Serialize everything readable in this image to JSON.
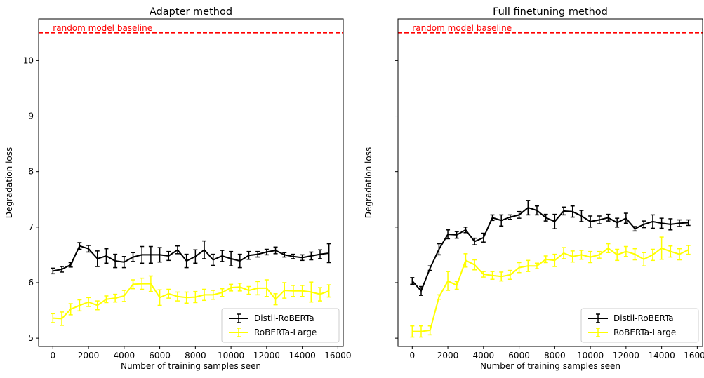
{
  "chart_data": [
    {
      "type": "line",
      "title": "Adapter method",
      "xlabel": "Number of training samples seen",
      "ylabel": "Degradation loss",
      "xlim": [
        -800,
        16300
      ],
      "ylim": [
        4.85,
        10.75
      ],
      "xticks": [
        0,
        2000,
        4000,
        6000,
        8000,
        10000,
        12000,
        14000,
        16000
      ],
      "yticks": [
        5,
        6,
        7,
        8,
        9,
        10
      ],
      "show_ytick_labels": true,
      "grid": false,
      "legend_position": "lower right",
      "baseline": {
        "label": "random model baseline",
        "y": 10.5,
        "color": "#ff0000"
      },
      "x": [
        0,
        500,
        1000,
        1500,
        2000,
        2500,
        3000,
        3500,
        4000,
        4500,
        5000,
        5500,
        6000,
        6500,
        7000,
        7500,
        8000,
        8500,
        9000,
        9500,
        10000,
        10500,
        11000,
        11500,
        12000,
        12500,
        13000,
        13500,
        14000,
        14500,
        15000,
        15500
      ],
      "series": [
        {
          "name": "Distil-RoBERTa",
          "color": "#000000",
          "values": [
            6.21,
            6.24,
            6.32,
            6.66,
            6.61,
            6.43,
            6.48,
            6.39,
            6.37,
            6.46,
            6.5,
            6.5,
            6.5,
            6.48,
            6.59,
            6.39,
            6.47,
            6.59,
            6.41,
            6.48,
            6.43,
            6.39,
            6.49,
            6.51,
            6.55,
            6.58,
            6.5,
            6.47,
            6.45,
            6.48,
            6.51,
            6.53
          ],
          "errors": [
            0.05,
            0.05,
            0.04,
            0.06,
            0.06,
            0.14,
            0.13,
            0.12,
            0.1,
            0.08,
            0.15,
            0.15,
            0.13,
            0.08,
            0.07,
            0.12,
            0.12,
            0.16,
            0.1,
            0.1,
            0.13,
            0.12,
            0.07,
            0.05,
            0.05,
            0.06,
            0.04,
            0.04,
            0.05,
            0.07,
            0.08,
            0.17
          ]
        },
        {
          "name": "RoBERTa-Large",
          "color": "#ffff00",
          "values": [
            5.36,
            5.35,
            5.52,
            5.59,
            5.65,
            5.59,
            5.7,
            5.72,
            5.76,
            5.97,
            5.98,
            5.98,
            5.73,
            5.8,
            5.75,
            5.73,
            5.74,
            5.78,
            5.78,
            5.82,
            5.91,
            5.92,
            5.86,
            5.9,
            5.9,
            5.7,
            5.86,
            5.85,
            5.85,
            5.83,
            5.79,
            5.85
          ],
          "errors": [
            0.08,
            0.12,
            0.1,
            0.1,
            0.08,
            0.08,
            0.06,
            0.07,
            0.1,
            0.08,
            0.1,
            0.14,
            0.14,
            0.08,
            0.08,
            0.1,
            0.1,
            0.1,
            0.08,
            0.07,
            0.06,
            0.07,
            0.07,
            0.12,
            0.15,
            0.1,
            0.14,
            0.1,
            0.1,
            0.18,
            0.12,
            0.11
          ]
        }
      ]
    },
    {
      "type": "line",
      "title": "Full finetuning method",
      "xlabel": "Number of training samples seen",
      "ylabel": "Degradation loss",
      "xlim": [
        -800,
        16300
      ],
      "ylim": [
        4.85,
        10.75
      ],
      "xticks": [
        0,
        2000,
        4000,
        6000,
        8000,
        10000,
        12000,
        14000,
        16000
      ],
      "yticks": [
        5,
        6,
        7,
        8,
        9,
        10
      ],
      "show_ytick_labels": false,
      "grid": false,
      "legend_position": "lower right",
      "baseline": {
        "label": "random model baseline",
        "y": 10.5,
        "color": "#ff0000"
      },
      "x": [
        0,
        500,
        1000,
        1500,
        2000,
        2500,
        3000,
        3500,
        4000,
        4500,
        5000,
        5500,
        6000,
        6500,
        7000,
        7500,
        8000,
        8500,
        9000,
        9500,
        10000,
        10500,
        11000,
        11500,
        12000,
        12500,
        13000,
        13500,
        14000,
        14500,
        15000,
        15500
      ],
      "series": [
        {
          "name": "Distil-RoBERTa",
          "color": "#000000",
          "values": [
            6.03,
            5.85,
            6.26,
            6.6,
            6.87,
            6.86,
            6.95,
            6.74,
            6.81,
            7.17,
            7.12,
            7.18,
            7.22,
            7.35,
            7.3,
            7.17,
            7.1,
            7.29,
            7.28,
            7.2,
            7.1,
            7.13,
            7.17,
            7.08,
            7.16,
            6.97,
            7.05,
            7.1,
            7.07,
            7.05,
            7.07,
            7.08
          ],
          "errors": [
            0.06,
            0.08,
            0.04,
            0.1,
            0.08,
            0.06,
            0.05,
            0.06,
            0.08,
            0.05,
            0.1,
            0.04,
            0.06,
            0.13,
            0.08,
            0.06,
            0.13,
            0.07,
            0.1,
            0.1,
            0.1,
            0.07,
            0.06,
            0.08,
            0.09,
            0.04,
            0.06,
            0.12,
            0.09,
            0.1,
            0.06,
            0.05
          ]
        },
        {
          "name": "RoBERTa-Large",
          "color": "#ffff00",
          "values": [
            5.12,
            5.12,
            5.14,
            5.74,
            6.03,
            5.95,
            6.4,
            6.32,
            6.15,
            6.13,
            6.11,
            6.14,
            6.27,
            6.3,
            6.3,
            6.42,
            6.4,
            6.53,
            6.47,
            6.5,
            6.46,
            6.5,
            6.62,
            6.5,
            6.56,
            6.51,
            6.42,
            6.5,
            6.62,
            6.56,
            6.51,
            6.59
          ],
          "errors": [
            0.1,
            0.1,
            0.08,
            0.04,
            0.17,
            0.07,
            0.12,
            0.09,
            0.05,
            0.07,
            0.08,
            0.08,
            0.09,
            0.1,
            0.05,
            0.06,
            0.11,
            0.1,
            0.1,
            0.08,
            0.1,
            0.06,
            0.08,
            0.1,
            0.09,
            0.1,
            0.12,
            0.1,
            0.2,
            0.1,
            0.1,
            0.08
          ]
        }
      ]
    }
  ]
}
